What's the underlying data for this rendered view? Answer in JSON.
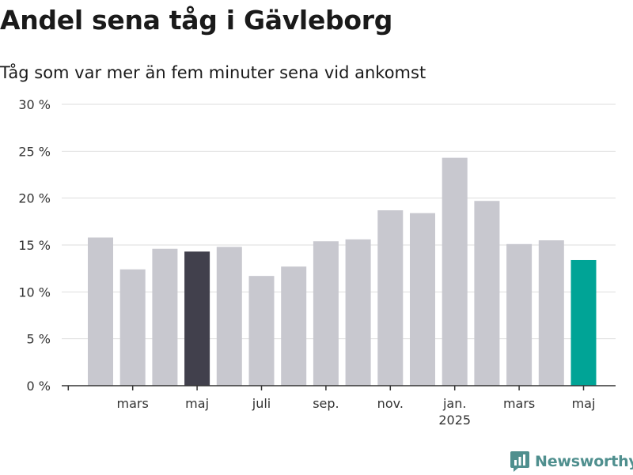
{
  "chart_data": {
    "type": "bar",
    "title": "Andel sena tåg i Gävleborg",
    "subtitle": "Tåg som var mer än fem minuter sena vid ankomst",
    "values": [
      15.8,
      12.4,
      14.6,
      14.3,
      14.8,
      11.7,
      12.7,
      15.4,
      15.6,
      18.7,
      18.4,
      24.3,
      19.7,
      15.1,
      15.5,
      13.4
    ],
    "bar_colors": [
      "#c8c8cf",
      "#c8c8cf",
      "#c8c8cf",
      "#41404c",
      "#c8c8cf",
      "#c8c8cf",
      "#c8c8cf",
      "#c8c8cf",
      "#c8c8cf",
      "#c8c8cf",
      "#c8c8cf",
      "#c8c8cf",
      "#c8c8cf",
      "#c8c8cf",
      "#c8c8cf",
      "#00a496"
    ],
    "y_ticks": [
      {
        "value": 0,
        "label": "0 %"
      },
      {
        "value": 5,
        "label": "5 %"
      },
      {
        "value": 10,
        "label": "10 %"
      },
      {
        "value": 15,
        "label": "15 %"
      },
      {
        "value": 20,
        "label": "20 %"
      },
      {
        "value": 25,
        "label": "25 %"
      },
      {
        "value": 30,
        "label": "30 %"
      }
    ],
    "ylim": [
      0,
      30
    ],
    "x_ticks": [
      {
        "label": "mars"
      },
      {
        "label": "maj"
      },
      {
        "label": "juli"
      },
      {
        "label": "sep."
      },
      {
        "label": "nov."
      },
      {
        "label": "jan.",
        "sub": "2025"
      },
      {
        "label": "mars"
      },
      {
        "label": "maj"
      }
    ],
    "grid": true,
    "colors": {
      "gray": "#c8c8cf",
      "highlight_dark": "#41404c",
      "highlight_teal": "#00a496"
    }
  },
  "brand": {
    "name": "Newsworthy",
    "icon": "bar-chart-icon",
    "color": "#4f8f8e"
  }
}
